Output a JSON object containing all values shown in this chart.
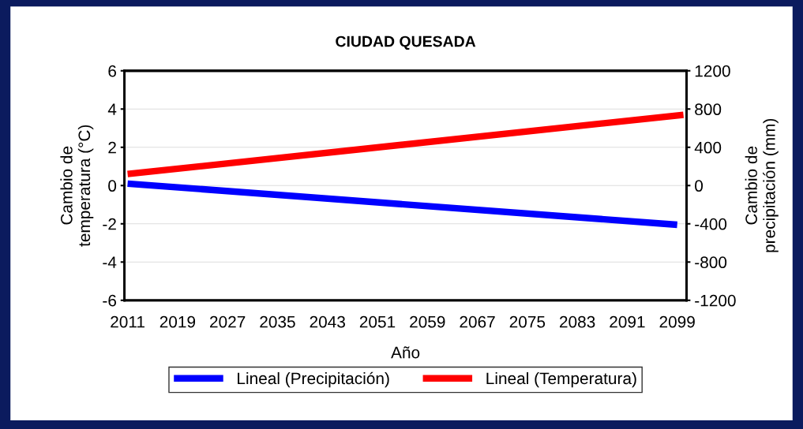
{
  "chart_data": {
    "type": "line",
    "title": "CIUDAD QUESADA",
    "xlabel": "Año",
    "ylabel": "Cambio de\ntemperatura (°C)",
    "y2label": "Cambio de\nprecipitación (mm)",
    "series": [
      {
        "name": "Lineal (Precipitación)",
        "color": "#0000ff",
        "axis": "y2",
        "x": [
          2011,
          2099
        ],
        "values": [
          20,
          -410
        ]
      },
      {
        "name": "Lineal (Temperatura)",
        "color": "#ff0000",
        "x": [
          2011,
          2100
        ],
        "values": [
          0.6,
          3.7
        ]
      }
    ],
    "xlim": [
      2010.5,
      2100.5
    ],
    "xticks": [
      2011,
      2019,
      2027,
      2035,
      2043,
      2051,
      2059,
      2067,
      2075,
      2083,
      2091,
      2099
    ],
    "ylim": [
      -6,
      6
    ],
    "yticks": [
      -6,
      -4,
      -2,
      0,
      2,
      4,
      6
    ],
    "y2lim": [
      -1200,
      1200
    ],
    "y2ticks": [
      -1200,
      -800,
      -400,
      0,
      400,
      800,
      1200
    ],
    "grid": "y",
    "legend": "bottom",
    "marker": "none",
    "line_style": "solid"
  }
}
